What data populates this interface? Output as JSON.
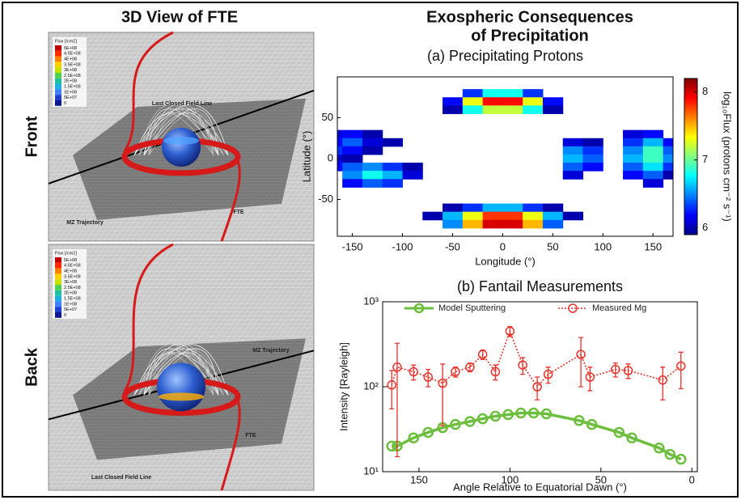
{
  "figure": {
    "title": "3D View of FTE",
    "legend_title": "Flux [/cm2]",
    "legend_labels": [
      "5E+08",
      "4.5E+08",
      "4E+08",
      "3.5E+08",
      "3E+08",
      "2.5E+08",
      "2E+08",
      "1.5E+08",
      "1E+08",
      "5E+07",
      "0"
    ],
    "views": [
      {
        "label": "Front",
        "annotations": [
          "Last Closed Field Line",
          "MZ Trajectory",
          "FTE"
        ]
      },
      {
        "label": "Back",
        "annotations": [
          "MZ Trajectory",
          "FTE",
          "Last Closed Field Line"
        ]
      }
    ],
    "right_title": [
      "Exospheric Consequences",
      "of Precipitation"
    ]
  },
  "chart_data": [
    {
      "type": "heatmap",
      "title": "(a) Precipitating Protons",
      "x": [
        -170,
        -150,
        -130,
        -110,
        -90,
        -70,
        -50,
        -30,
        -10,
        10,
        30,
        50,
        70,
        90,
        110,
        130,
        150,
        170
      ],
      "y": [
        80,
        70,
        60,
        50,
        40,
        30,
        20,
        10,
        0,
        -10,
        -20,
        -30,
        -40,
        -50,
        -60,
        -70,
        -80
      ],
      "z": [
        [
          null,
          null,
          null,
          null,
          null,
          null,
          null,
          6.3,
          6.8,
          6.8,
          6.3,
          null,
          null,
          null,
          null,
          null,
          null,
          null
        ],
        [
          null,
          null,
          null,
          null,
          null,
          null,
          6.2,
          7.3,
          7.9,
          7.9,
          7.3,
          6.2,
          null,
          null,
          null,
          null,
          null,
          null
        ],
        [
          null,
          null,
          null,
          null,
          null,
          null,
          6.0,
          6.8,
          7.2,
          7.2,
          6.8,
          6.0,
          null,
          null,
          null,
          null,
          null,
          null
        ],
        [
          null,
          null,
          null,
          null,
          null,
          null,
          null,
          null,
          null,
          null,
          null,
          null,
          null,
          null,
          null,
          null,
          null,
          null
        ],
        [
          null,
          null,
          null,
          null,
          null,
          null,
          null,
          null,
          null,
          null,
          null,
          null,
          null,
          null,
          null,
          null,
          null,
          null
        ],
        [
          6.1,
          6.2,
          6.0,
          null,
          null,
          null,
          null,
          null,
          null,
          null,
          null,
          null,
          null,
          null,
          null,
          6.1,
          6.2,
          null
        ],
        [
          6.2,
          6.4,
          6.1,
          6.0,
          null,
          null,
          null,
          null,
          null,
          null,
          null,
          null,
          6.1,
          6.0,
          null,
          6.3,
          6.6,
          6.2
        ],
        [
          6.3,
          6.2,
          6.0,
          null,
          null,
          null,
          null,
          null,
          null,
          null,
          null,
          null,
          6.5,
          6.3,
          null,
          6.5,
          6.9,
          6.4
        ],
        [
          6.1,
          6.0,
          null,
          null,
          null,
          null,
          null,
          null,
          null,
          null,
          null,
          null,
          6.6,
          6.4,
          null,
          6.6,
          6.9,
          6.5
        ],
        [
          6.2,
          6.4,
          6.5,
          6.3,
          6.0,
          null,
          null,
          null,
          null,
          null,
          null,
          null,
          6.4,
          6.2,
          null,
          6.4,
          6.7,
          6.3
        ],
        [
          null,
          6.5,
          6.8,
          6.6,
          6.1,
          null,
          null,
          null,
          null,
          null,
          null,
          null,
          6.1,
          null,
          null,
          6.2,
          6.4,
          6.0
        ],
        [
          null,
          6.2,
          6.4,
          6.3,
          null,
          null,
          null,
          null,
          null,
          null,
          null,
          null,
          null,
          null,
          null,
          null,
          6.1,
          null
        ],
        [
          null,
          null,
          null,
          null,
          null,
          null,
          null,
          null,
          null,
          null,
          null,
          null,
          null,
          null,
          null,
          null,
          null,
          null
        ],
        [
          null,
          null,
          null,
          null,
          null,
          null,
          null,
          null,
          null,
          null,
          null,
          null,
          null,
          null,
          null,
          null,
          null,
          null
        ],
        [
          null,
          null,
          null,
          null,
          null,
          null,
          6.0,
          6.3,
          6.6,
          6.6,
          6.3,
          6.0,
          null,
          null,
          null,
          null,
          null,
          null
        ],
        [
          null,
          null,
          null,
          null,
          null,
          6.0,
          6.6,
          7.3,
          7.8,
          7.8,
          7.3,
          6.6,
          6.0,
          null,
          null,
          null,
          null,
          null
        ],
        [
          null,
          null,
          null,
          null,
          null,
          null,
          6.5,
          7.5,
          8.0,
          8.0,
          7.5,
          6.4,
          null,
          null,
          null,
          null,
          null,
          null
        ]
      ],
      "xlim": [
        -165,
        170
      ],
      "ylim": [
        -95,
        100
      ],
      "xticks": [
        -150,
        -100,
        -50,
        0,
        50,
        100,
        150
      ],
      "yticks": [
        -50,
        0,
        50
      ],
      "xlabel": "Longitude (°)",
      "ylabel": "Latitude (°)",
      "colormap": "jet",
      "colorbar": {
        "label": "log₁₀Flux (protons cm⁻² s⁻¹)",
        "lim": [
          5.9,
          8.2
        ],
        "ticks": [
          6,
          7,
          8
        ]
      }
    },
    {
      "type": "line",
      "title": "(b) Fantail Measurements",
      "xlabel": "Angle Relative to Equatorial Dawn (°)",
      "ylabel": "Intensity [Rayleigh]",
      "xlim": [
        170,
        -3
      ],
      "ylim": [
        10,
        1000
      ],
      "yscale": "log",
      "xticks": [
        150,
        100,
        50,
        0
      ],
      "yticks": [
        {
          "value": 10,
          "label": "10¹"
        },
        {
          "value": 100,
          "label": "10²"
        },
        {
          "value": 1000,
          "label": "10³"
        }
      ],
      "legend": "top",
      "series": [
        {
          "name": "Model Sputtering",
          "color": "#6cbf3c",
          "linestyle": "solid",
          "x": [
            165,
            162,
            153,
            145,
            137,
            130,
            122,
            115,
            108,
            101,
            94,
            87,
            80,
            62,
            55,
            40,
            33,
            18,
            12,
            6
          ],
          "values": [
            20,
            20,
            25,
            29,
            33,
            36,
            39,
            42,
            45,
            47,
            49,
            49,
            48,
            40,
            36,
            29,
            25,
            19,
            16,
            14
          ]
        },
        {
          "name": "Measured Mg",
          "color": "#e8322a",
          "linestyle": "dotted",
          "x": [
            165,
            162,
            153,
            145,
            137,
            130,
            122,
            115,
            108,
            100,
            93,
            85,
            79,
            61,
            56,
            42,
            35,
            16,
            6
          ],
          "values": [
            105,
            170,
            150,
            130,
            110,
            150,
            170,
            240,
            150,
            450,
            180,
            100,
            140,
            240,
            130,
            160,
            155,
            120,
            175
          ],
          "errors": [
            50,
            155,
            30,
            30,
            75,
            20,
            20,
            30,
            30,
            60,
            40,
            30,
            30,
            140,
            40,
            30,
            30,
            50,
            80
          ]
        }
      ]
    }
  ]
}
